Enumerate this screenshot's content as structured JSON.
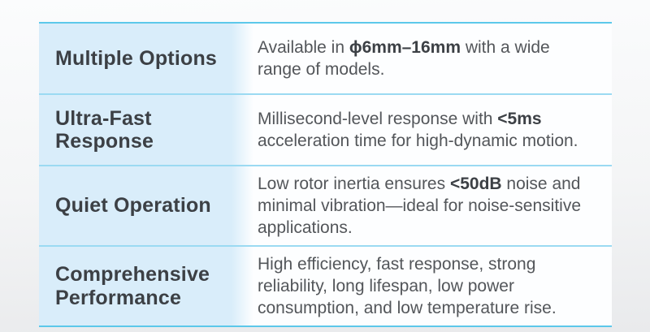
{
  "colors": {
    "accent_border": "#5cc8ea",
    "divider": "#9bdaf2",
    "header_bg": "#d9edfa",
    "body_bg": "#fdfeff",
    "title_color": "#3c4045",
    "text_color": "#53565a",
    "page_bg_top": "#fbfcfd",
    "page_bg_bottom": "#e9eaec"
  },
  "table": {
    "rows": [
      {
        "title": "Multiple Options",
        "desc": [
          {
            "text": "Available in ",
            "bold": false
          },
          {
            "text": "ϕ6mm–16mm",
            "bold": true
          },
          {
            "text": " with a wide\nrange of models.",
            "bold": false
          }
        ]
      },
      {
        "title": "Ultra-Fast\nResponse",
        "desc": [
          {
            "text": "Millisecond-level response with ",
            "bold": false
          },
          {
            "text": "<5ms",
            "bold": true
          },
          {
            "text": "\nacceleration time for high-dynamic motion.",
            "bold": false
          }
        ]
      },
      {
        "title": "Quiet Operation",
        "desc": [
          {
            "text": "Low rotor inertia ensures ",
            "bold": false
          },
          {
            "text": "<50dB",
            "bold": true
          },
          {
            "text": " noise and\nminimal vibration—ideal for noise-sensitive\napplications.",
            "bold": false
          }
        ]
      },
      {
        "title": "Comprehensive\nPerformance",
        "desc": [
          {
            "text": "High efficiency, fast response, strong\nreliability, long lifespan, low power\nconsumption, and low temperature rise.",
            "bold": false
          }
        ]
      }
    ]
  }
}
